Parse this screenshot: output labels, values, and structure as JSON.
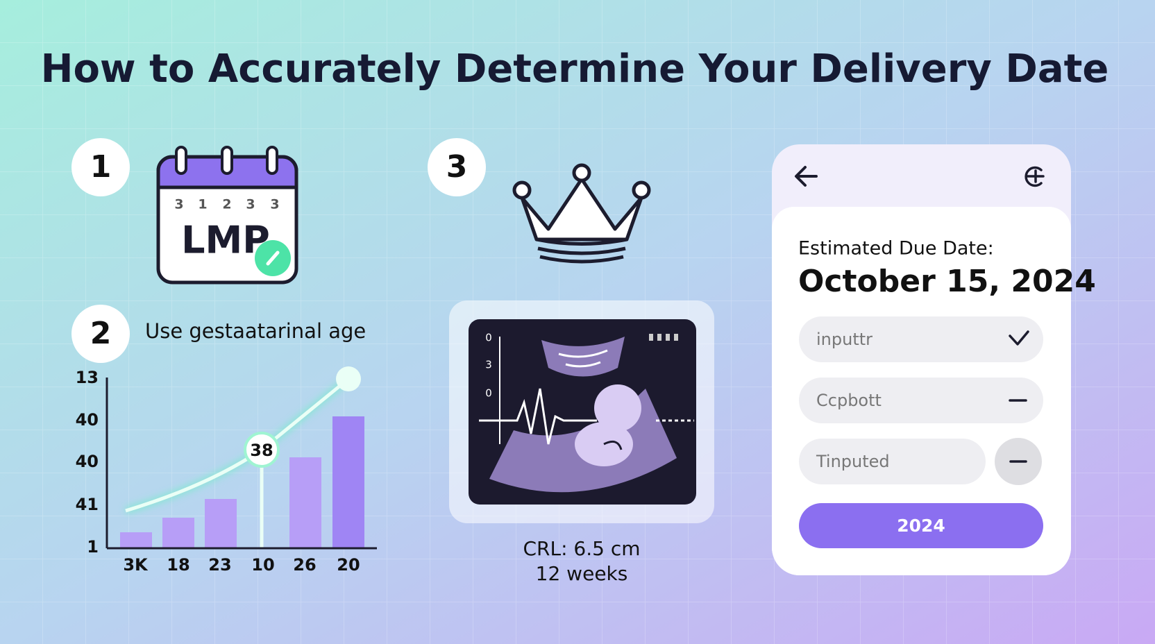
{
  "header": {
    "title": "How to Accurately Determine Your Delivery Date"
  },
  "steps": [
    {
      "number": "1",
      "calendar_days": [
        "3",
        "1",
        "2",
        "3",
        "3"
      ],
      "calendar_label": "LMP"
    },
    {
      "number": "2",
      "text": "Use gestaatarinal age"
    },
    {
      "number": "3"
    }
  ],
  "chart": {
    "y_labels": [
      "13",
      "40",
      "40",
      "41",
      "1"
    ],
    "x_labels": [
      "3K",
      "18",
      "23",
      "10",
      "26",
      "20"
    ],
    "marker_label": "38"
  },
  "ultrasound": {
    "scale_labels": [
      "0",
      "3",
      "0"
    ],
    "caption": [
      "CRL: 6.5 cm",
      "12 weeks"
    ]
  },
  "phone": {
    "label": "Estimated Due Date:",
    "date": "October 15, 2024",
    "inputs": [
      "inputtr",
      "Ccpbott",
      "Tinputed"
    ],
    "button": "2024"
  }
}
